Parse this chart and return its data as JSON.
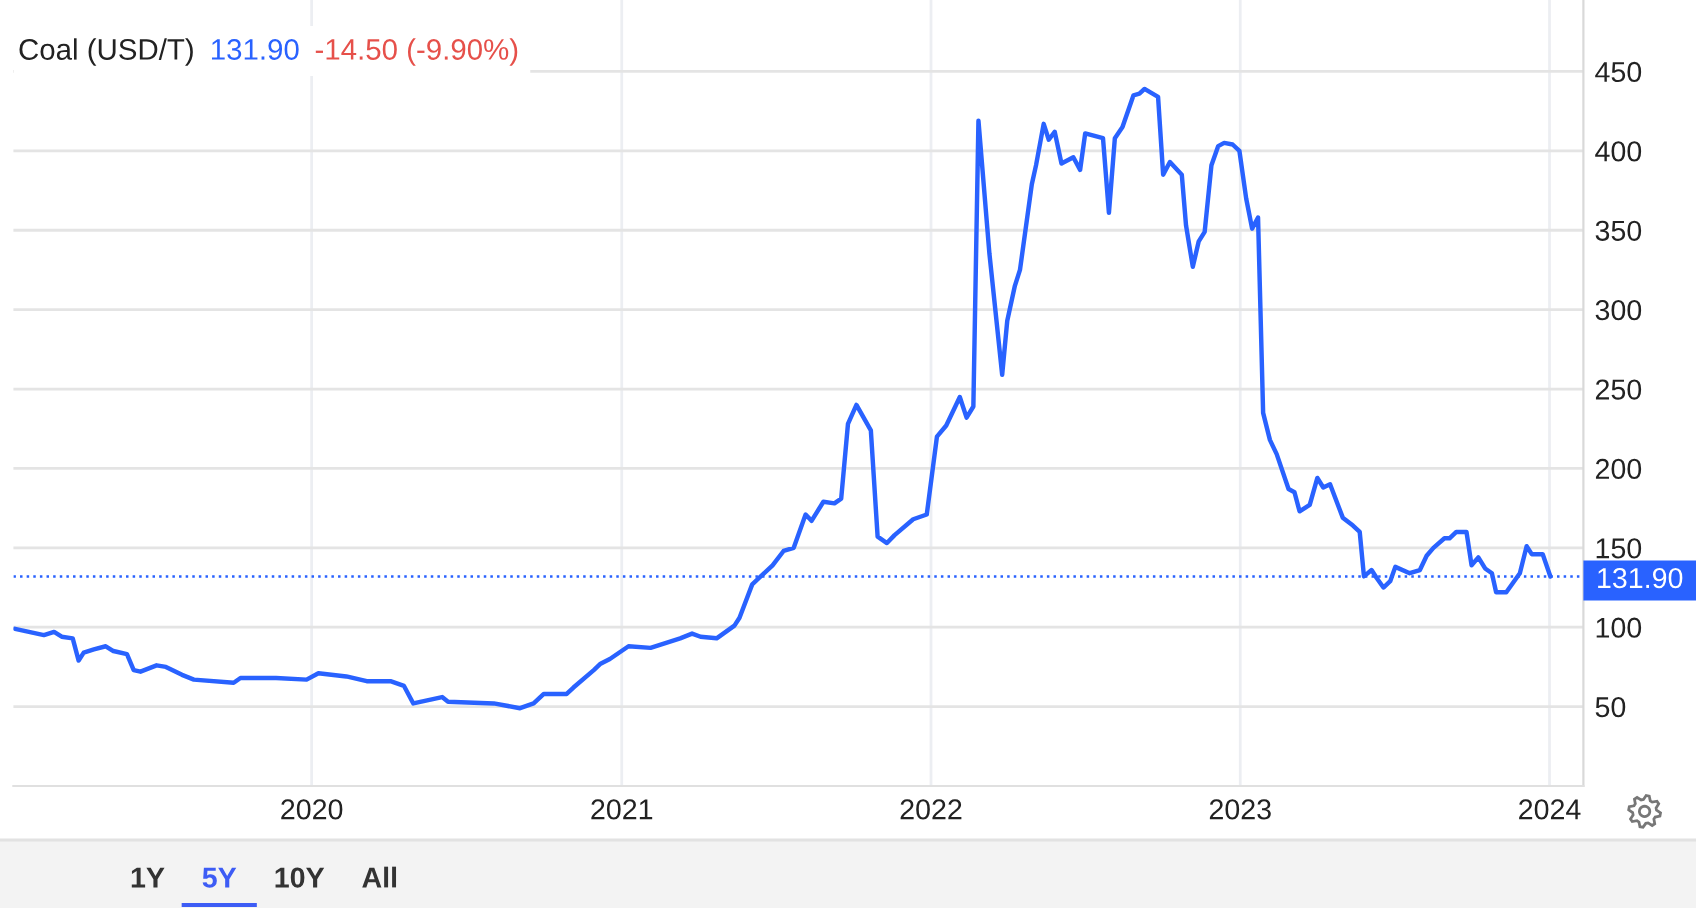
{
  "chart_data": {
    "type": "line",
    "title": "Coal (USD/T)",
    "annotations": [
      "131.90",
      "-14.50 (-9.90%)",
      "1Y",
      "5Y",
      "10Y",
      "All"
    ],
    "x": [
      "2019-01-16",
      "2019-02-19",
      "2019-03-03",
      "2019-03-12",
      "2019-03-25",
      "2019-04-01",
      "2019-04-07",
      "2019-04-19",
      "2019-05-03",
      "2019-05-12",
      "2019-05-28",
      "2019-06-05",
      "2019-06-13",
      "2019-07-02",
      "2019-07-13",
      "2019-08-01",
      "2019-08-15",
      "2019-10-01",
      "2019-10-09",
      "2019-10-28",
      "2019-11-20",
      "2019-12-26",
      "2020-01-09",
      "2020-02-11",
      "2020-03-06",
      "2020-04-03",
      "2020-04-19",
      "2020-04-30",
      "2020-06-03",
      "2020-06-10",
      "2020-08-03",
      "2020-09-03",
      "2020-09-19",
      "2020-10-01",
      "2020-10-28",
      "2020-11-05",
      "2020-11-29",
      "2020-12-07",
      "2020-12-18",
      "2021-01-09",
      "2021-02-04",
      "2021-03-11",
      "2021-03-25",
      "2021-04-04",
      "2021-04-23",
      "2021-05-14",
      "2021-05-20",
      "2021-06-04",
      "2021-06-28",
      "2021-07-11",
      "2021-07-23",
      "2021-08-06",
      "2021-08-13",
      "2021-08-27",
      "2021-09-09",
      "2021-09-17",
      "2021-09-25",
      "2021-10-05",
      "2021-10-22",
      "2021-10-30",
      "2021-11-10",
      "2021-11-19",
      "2021-12-11",
      "2021-12-27",
      "2022-01-08",
      "2022-01-19",
      "2022-02-04",
      "2022-02-12",
      "2022-02-20",
      "2022-02-26",
      "2022-03-11",
      "2022-03-26",
      "2022-04-01",
      "2022-04-10",
      "2022-04-16",
      "2022-04-30",
      "2022-05-05",
      "2022-05-14",
      "2022-05-20",
      "2022-05-27",
      "2022-06-04",
      "2022-06-18",
      "2022-06-26",
      "2022-07-02",
      "2022-07-23",
      "2022-07-30",
      "2022-08-06",
      "2022-08-15",
      "2022-08-28",
      "2022-09-04",
      "2022-09-10",
      "2022-09-26",
      "2022-10-02",
      "2022-10-10",
      "2022-10-24",
      "2022-10-29",
      "2022-11-06",
      "2022-11-13",
      "2022-11-20",
      "2022-11-28",
      "2022-12-06",
      "2022-12-13",
      "2022-12-23",
      "2022-12-31",
      "2023-01-08",
      "2023-01-15",
      "2023-01-22",
      "2023-01-28",
      "2023-02-05",
      "2023-02-13",
      "2023-02-27",
      "2023-03-06",
      "2023-03-12",
      "2023-03-24",
      "2023-04-02",
      "2023-04-09",
      "2023-04-17",
      "2023-05-02",
      "2023-05-14",
      "2023-05-22",
      "2023-05-27",
      "2023-06-05",
      "2023-06-11",
      "2023-06-19",
      "2023-06-27",
      "2023-07-03",
      "2023-07-20",
      "2023-08-01",
      "2023-08-09",
      "2023-08-17",
      "2023-08-30",
      "2023-09-05",
      "2023-09-13",
      "2023-09-25",
      "2023-10-01",
      "2023-10-09",
      "2023-10-17",
      "2023-10-25",
      "2023-10-30",
      "2023-11-11",
      "2023-11-27",
      "2023-12-05",
      "2023-12-11",
      "2023-12-24",
      "2024-01-02"
    ],
    "series": [
      {
        "color": "#2962ff",
        "values": [
          99,
          95,
          97,
          94,
          93,
          79,
          84,
          86,
          88,
          85,
          83,
          73,
          72,
          76,
          75,
          70,
          67,
          65,
          68,
          68,
          68,
          67,
          71,
          69,
          66,
          66,
          63,
          52,
          56,
          53,
          52,
          49,
          52,
          58,
          58,
          62,
          73,
          77,
          80,
          88,
          87,
          93,
          96,
          94,
          93,
          101,
          106,
          127,
          139,
          148,
          150,
          171,
          167,
          179,
          178,
          181,
          228,
          240,
          224,
          157,
          153,
          158,
          168,
          171,
          220,
          227,
          245,
          232,
          239,
          419,
          335,
          259,
          293,
          315,
          325,
          379,
          391,
          417,
          407,
          412,
          392,
          396,
          388,
          411,
          408,
          361,
          408,
          415,
          435,
          436,
          439,
          434,
          385,
          393,
          385,
          353,
          327,
          343,
          349,
          391,
          403,
          405,
          404,
          400,
          370,
          351,
          358,
          235,
          218,
          209,
          187,
          185,
          173,
          177,
          194,
          188,
          190,
          169,
          164,
          160,
          132,
          136,
          131,
          125,
          129,
          138,
          134,
          136,
          145,
          150,
          156,
          156,
          160,
          160,
          139,
          144,
          137,
          134,
          122,
          122,
          134,
          151,
          146,
          146,
          131.9
        ]
      }
    ],
    "xlim": [
      "2019-01-14",
      "2024-02-10"
    ],
    "xticks": [
      "2020",
      "2021",
      "2022",
      "2023",
      "2024"
    ],
    "ylim": [
      0,
      495
    ],
    "yticks": [
      50,
      100,
      150,
      200,
      250,
      300,
      350,
      400,
      450
    ],
    "grid": true,
    "ref_lines": [
      {
        "axis": "y",
        "value": 131.9,
        "label": "131.90",
        "color": "#2962ff",
        "line_style": "dotted"
      }
    ]
  }
}
